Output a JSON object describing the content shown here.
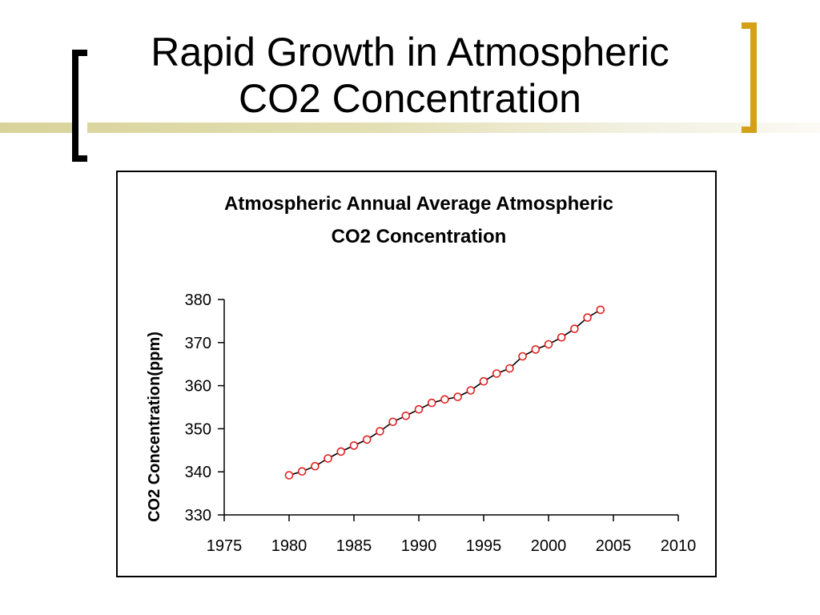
{
  "slide": {
    "title_line1": "Rapid Growth in Atmospheric",
    "title_line2": "CO2 Concentration"
  },
  "colors": {
    "left_bracket": "#000000",
    "right_bracket": "#d4a017",
    "marker": "#e02020",
    "line": "#000000",
    "accent_bar": "#d8d39a"
  },
  "chart_data": {
    "type": "line",
    "title_line1": "Atmospheric Annual Average Atmospheric",
    "title_line2": "CO2 Concentration",
    "xlabel": "",
    "ylabel": "CO2 Concentration(ppm)",
    "xlim": [
      1975,
      2010
    ],
    "ylim": [
      330,
      380
    ],
    "xticks": [
      1975,
      1980,
      1985,
      1990,
      1995,
      2000,
      2005,
      2010
    ],
    "yticks": [
      330,
      340,
      350,
      360,
      370,
      380
    ],
    "grid": false,
    "legend": "none",
    "series": [
      {
        "x": [
          1980,
          1981,
          1982,
          1983,
          1984,
          1985,
          1986,
          1987,
          1988,
          1989,
          1990,
          1991,
          1992,
          1993,
          1994,
          1995,
          1996,
          1997,
          1998,
          1999,
          2000,
          2001,
          2002,
          2003,
          2004
        ],
        "values": [
          339.2,
          340.1,
          341.3,
          343.1,
          344.7,
          346.1,
          347.5,
          349.4,
          351.6,
          353.0,
          354.5,
          356.0,
          356.8,
          357.4,
          358.9,
          361.0,
          362.8,
          364.0,
          366.8,
          368.4,
          369.6,
          371.2,
          373.2,
          375.8,
          377.6
        ]
      }
    ]
  }
}
